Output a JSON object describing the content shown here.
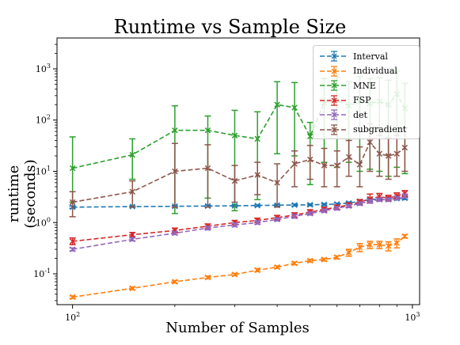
{
  "chart_data": {
    "type": "line",
    "title": "Runtime vs Sample Size",
    "xlabel": "Number of Samples",
    "ylabel": "runtime (seconds)",
    "xscale": "log",
    "yscale": "log",
    "xlim": [
      90,
      1050
    ],
    "ylim": [
      0.025,
      4000
    ],
    "x_ticks": [
      {
        "value": 100,
        "label": "10^2"
      },
      {
        "value": 1000,
        "label": "10^3"
      }
    ],
    "y_ticks": [
      {
        "value": 0.1,
        "label": "10^-1"
      },
      {
        "value": 1,
        "label": "10^0"
      },
      {
        "value": 10,
        "label": "10^1"
      },
      {
        "value": 100,
        "label": "10^2"
      },
      {
        "value": 1000,
        "label": "10^3"
      }
    ],
    "grid": false,
    "legend_position": "top-right",
    "x": [
      100,
      150,
      200,
      250,
      300,
      350,
      400,
      450,
      500,
      550,
      600,
      650,
      700,
      750,
      800,
      850,
      900,
      950
    ],
    "series": [
      {
        "name": "Interval",
        "color": "#1f77b4",
        "values": [
          2.0,
          2.05,
          2.08,
          2.1,
          2.12,
          2.15,
          2.18,
          2.2,
          2.22,
          2.25,
          2.3,
          2.4,
          2.6,
          2.8,
          2.85,
          2.9,
          2.95,
          3.0
        ],
        "err_low": [
          1.9,
          1.98,
          2.0,
          2.02,
          2.05,
          2.07,
          2.1,
          2.1,
          2.12,
          2.15,
          2.2,
          2.28,
          2.4,
          2.6,
          2.65,
          2.65,
          2.75,
          2.8
        ],
        "err_high": [
          2.1,
          2.12,
          2.15,
          2.18,
          2.2,
          2.22,
          2.26,
          2.3,
          2.32,
          2.35,
          2.4,
          2.52,
          2.8,
          3.0,
          3.05,
          3.15,
          3.15,
          3.2
        ]
      },
      {
        "name": "Individual",
        "color": "#ff7f0e",
        "values": [
          0.035,
          0.052,
          0.07,
          0.085,
          0.097,
          0.118,
          0.135,
          0.16,
          0.18,
          0.19,
          0.21,
          0.26,
          0.33,
          0.37,
          0.37,
          0.35,
          0.4,
          0.54
        ],
        "err_low": [
          0.033,
          0.049,
          0.066,
          0.08,
          0.092,
          0.11,
          0.127,
          0.15,
          0.17,
          0.178,
          0.196,
          0.22,
          0.27,
          0.31,
          0.31,
          0.28,
          0.32,
          0.5
        ],
        "err_high": [
          0.037,
          0.055,
          0.074,
          0.09,
          0.102,
          0.126,
          0.143,
          0.17,
          0.19,
          0.2,
          0.224,
          0.3,
          0.39,
          0.43,
          0.43,
          0.42,
          0.48,
          0.58
        ]
      },
      {
        "name": "MNE",
        "color": "#2ca02c",
        "values": [
          11.5,
          21,
          63,
          63,
          50,
          43,
          200,
          175,
          48,
          220,
          240,
          190,
          230,
          210,
          230,
          200,
          320,
          170
        ],
        "err_low": [
          2.5,
          7,
          1.5,
          3,
          1.7,
          2.8,
          22,
          20,
          5.5,
          15,
          12,
          15,
          10,
          11,
          10,
          8,
          12,
          9
        ],
        "err_high": [
          47,
          43,
          190,
          120,
          155,
          145,
          560,
          540,
          90,
          650,
          680,
          560,
          700,
          650,
          680,
          600,
          900,
          520
        ]
      },
      {
        "name": "FSP",
        "color": "#d62728",
        "values": [
          0.43,
          0.58,
          0.7,
          0.85,
          1.0,
          1.1,
          1.25,
          1.4,
          1.6,
          1.8,
          2.0,
          2.2,
          2.5,
          2.9,
          3.2,
          3.0,
          3.3,
          3.7
        ],
        "err_low": [
          0.37,
          0.53,
          0.63,
          0.77,
          0.9,
          1.0,
          1.12,
          1.25,
          1.42,
          1.6,
          1.8,
          2.0,
          2.2,
          2.4,
          2.7,
          2.6,
          2.9,
          3.2
        ],
        "err_high": [
          0.5,
          0.64,
          0.78,
          0.94,
          1.1,
          1.22,
          1.38,
          1.55,
          1.78,
          2.0,
          2.2,
          2.4,
          2.8,
          3.6,
          3.7,
          3.4,
          3.8,
          4.2
        ]
      },
      {
        "name": "det",
        "color": "#9467bd",
        "values": [
          0.3,
          0.47,
          0.62,
          0.78,
          0.9,
          1.0,
          1.15,
          1.32,
          1.5,
          1.7,
          1.9,
          2.1,
          2.35,
          2.6,
          2.8,
          2.8,
          3.0,
          3.3
        ],
        "err_low": [
          0.28,
          0.44,
          0.58,
          0.72,
          0.83,
          0.93,
          1.07,
          1.22,
          1.4,
          1.58,
          1.76,
          1.96,
          2.18,
          2.42,
          2.6,
          2.6,
          2.8,
          3.05
        ],
        "err_high": [
          0.32,
          0.5,
          0.66,
          0.84,
          0.97,
          1.08,
          1.23,
          1.42,
          1.6,
          1.82,
          2.04,
          2.24,
          2.52,
          2.8,
          3.0,
          3.0,
          3.2,
          3.55
        ]
      },
      {
        "name": "subgradient",
        "color": "#8c564b",
        "values": [
          2.5,
          4.0,
          10.0,
          11.5,
          6.5,
          8.5,
          6.0,
          14.0,
          17.0,
          13.0,
          13.0,
          19.0,
          13.5,
          37.0,
          22.0,
          20.0,
          22.0,
          29.0
        ],
        "err_low": [
          1.3,
          2.0,
          2.0,
          2.0,
          2.5,
          3.5,
          2.0,
          5.0,
          7.0,
          5.0,
          5.0,
          8.0,
          5.0,
          10.0,
          8.0,
          7.0,
          8.0,
          10.0
        ],
        "err_high": [
          4.0,
          6.5,
          35.0,
          33.0,
          13.0,
          15.0,
          14.0,
          25.0,
          32.0,
          28.0,
          25.0,
          40.0,
          30.0,
          85.0,
          50.0,
          45.0,
          50.0,
          70.0
        ]
      }
    ]
  }
}
